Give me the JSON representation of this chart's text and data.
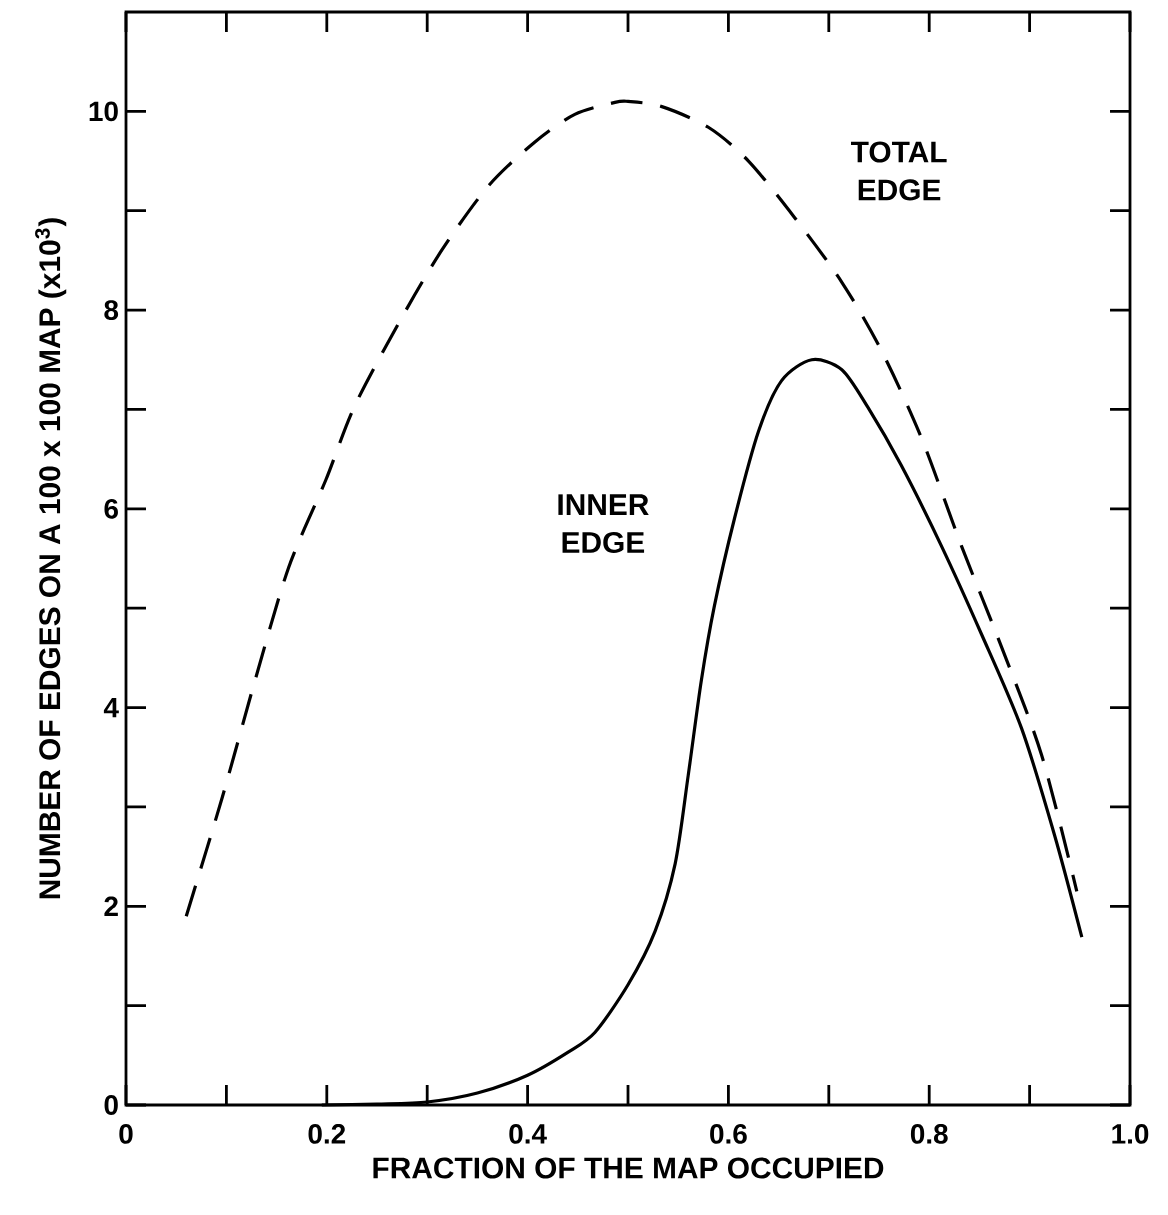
{
  "chart_data": {
    "type": "line",
    "xlabel": "FRACTION OF THE MAP OCCUPIED",
    "ylabel": "NUMBER OF EDGES ON A 100 x 100 MAP (x10$^{3}$)",
    "xlim": [
      0,
      1.0
    ],
    "ylim": [
      0,
      11
    ],
    "xticks": [
      0,
      0.2,
      0.4,
      0.6,
      0.8,
      {
        "value": 1.0,
        "label": "1.0"
      }
    ],
    "yticks": [
      0,
      2,
      4,
      6,
      8,
      10
    ],
    "series": [
      {
        "name": "TOTAL EDGE",
        "color": "#000000",
        "line_style": "dashed",
        "x": [
          0.06,
          0.096,
          0.129,
          0.162,
          0.199,
          0.228,
          0.275,
          0.315,
          0.361,
          0.407,
          0.447,
          0.487,
          0.5,
          0.533,
          0.58,
          0.62,
          0.666,
          0.713,
          0.752,
          0.792,
          0.832,
          0.872,
          0.912,
          0.947
        ],
        "values": [
          1.9,
          3.1,
          4.29,
          5.41,
          6.29,
          7.04,
          7.93,
          8.61,
          9.25,
          9.69,
          9.97,
          10.09,
          10.1,
          10.05,
          9.84,
          9.5,
          8.93,
          8.28,
          7.6,
          6.72,
          5.63,
          4.61,
          3.52,
          2.15
        ]
      },
      {
        "name": "INNER EDGE",
        "color": "#000000",
        "line_style": "solid",
        "x": [
          0.195,
          0.25,
          0.3,
          0.35,
          0.4,
          0.44,
          0.467,
          0.5,
          0.527,
          0.547,
          0.56,
          0.573,
          0.586,
          0.606,
          0.63,
          0.653,
          0.683,
          0.713,
          0.739,
          0.772,
          0.812,
          0.852,
          0.892,
          0.925,
          0.952
        ],
        "values": [
          0,
          0.01,
          0.03,
          0.12,
          0.3,
          0.53,
          0.73,
          1.21,
          1.75,
          2.43,
          3.32,
          4.27,
          5.02,
          5.9,
          6.78,
          7.29,
          7.5,
          7.4,
          7.02,
          6.44,
          5.63,
          4.74,
          3.79,
          2.71,
          1.69
        ]
      }
    ]
  }
}
